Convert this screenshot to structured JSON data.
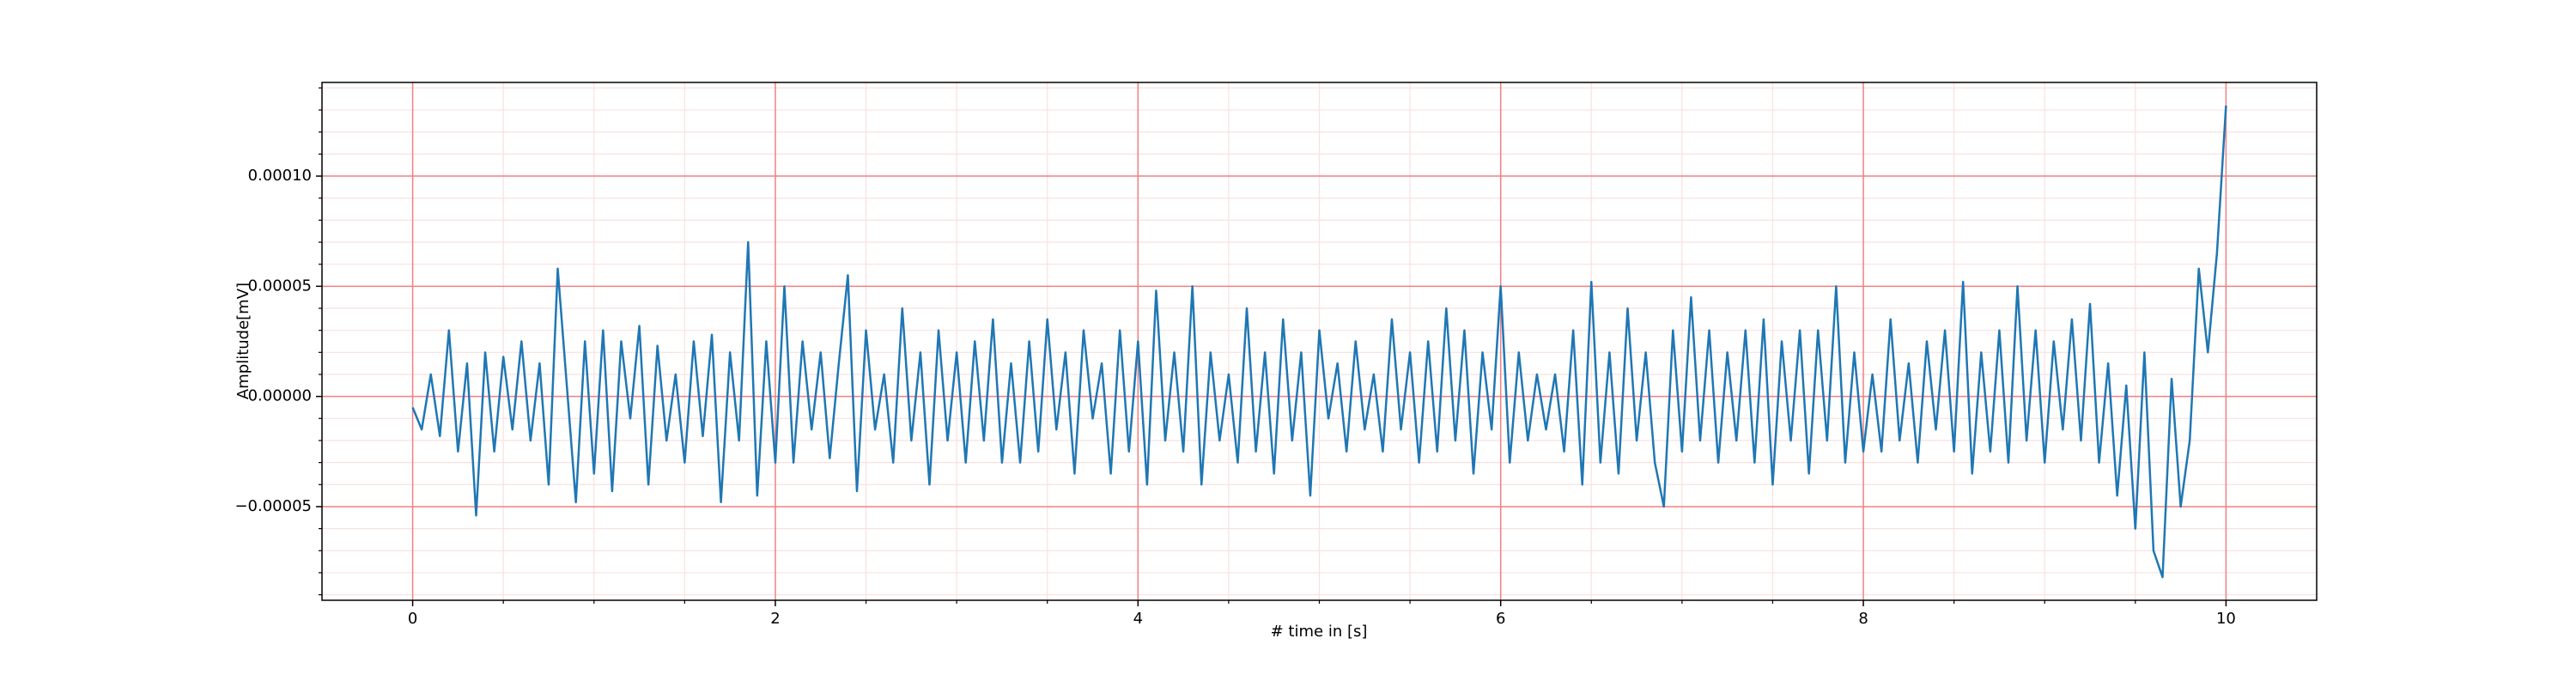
{
  "chart_data": {
    "type": "line",
    "x_label": "# time in [s]",
    "y_label": "Amplitude[mV]",
    "color": "#1f77b4",
    "grid": true,
    "major_grid_color": "#f08080",
    "minor_grid_color": "#fbe0e0",
    "xlim": [
      -0.5,
      10.5
    ],
    "xticks": [
      0,
      2,
      4,
      6,
      8,
      10
    ],
    "x_minor_ticks": [
      0.5,
      1,
      1.5,
      2.5,
      3,
      3.5,
      4.5,
      5,
      5.5,
      6.5,
      7,
      7.5,
      8.5,
      9,
      9.5
    ],
    "ylim": [
      -9.25e-05,
      0.0001425
    ],
    "yticks": [
      {
        "value": -5e-05,
        "label": "−0.00005"
      },
      {
        "value": 0,
        "label": "0.00000"
      },
      {
        "value": 5e-05,
        "label": "0.00005"
      },
      {
        "value": 0.0001,
        "label": "0.00010"
      }
    ],
    "y_minor_ticks": [
      -9e-05,
      -8e-05,
      -7e-05,
      -6e-05,
      -4e-05,
      -3e-05,
      -2e-05,
      -1e-05,
      1e-05,
      2e-05,
      3e-05,
      4e-05,
      6e-05,
      7e-05,
      8e-05,
      9e-05,
      0.00011,
      0.00012,
      0.00013,
      0.00014
    ],
    "x": [
      0,
      0.05,
      0.1,
      0.15,
      0.2,
      0.25,
      0.3,
      0.35,
      0.4,
      0.45,
      0.5,
      0.55,
      0.6,
      0.65,
      0.7,
      0.75,
      0.8,
      0.85,
      0.9,
      0.95,
      1,
      1.05,
      1.1,
      1.15,
      1.2,
      1.25,
      1.3,
      1.35,
      1.4,
      1.45,
      1.5,
      1.55,
      1.6,
      1.65,
      1.7,
      1.75,
      1.8,
      1.85,
      1.9,
      1.95,
      2,
      2.05,
      2.1,
      2.15,
      2.2,
      2.25,
      2.3,
      2.35,
      2.4,
      2.45,
      2.5,
      2.55,
      2.6,
      2.65,
      2.7,
      2.75,
      2.8,
      2.85,
      2.9,
      2.95,
      3,
      3.05,
      3.1,
      3.15,
      3.2,
      3.25,
      3.3,
      3.35,
      3.4,
      3.45,
      3.5,
      3.55,
      3.6,
      3.65,
      3.7,
      3.75,
      3.8,
      3.85,
      3.9,
      3.95,
      4,
      4.05,
      4.1,
      4.15,
      4.2,
      4.25,
      4.3,
      4.35,
      4.4,
      4.45,
      4.5,
      4.55,
      4.6,
      4.65,
      4.7,
      4.75,
      4.8,
      4.85,
      4.9,
      4.95,
      5,
      5.05,
      5.1,
      5.15,
      5.2,
      5.25,
      5.3,
      5.35,
      5.4,
      5.45,
      5.5,
      5.55,
      5.6,
      5.65,
      5.7,
      5.75,
      5.8,
      5.85,
      5.9,
      5.95,
      6,
      6.05,
      6.1,
      6.15,
      6.2,
      6.25,
      6.3,
      6.35,
      6.4,
      6.45,
      6.5,
      6.55,
      6.6,
      6.65,
      6.7,
      6.75,
      6.8,
      6.85,
      6.9,
      6.95,
      7,
      7.05,
      7.1,
      7.15,
      7.2,
      7.25,
      7.3,
      7.35,
      7.4,
      7.45,
      7.5,
      7.55,
      7.6,
      7.65,
      7.7,
      7.75,
      7.8,
      7.85,
      7.9,
      7.95,
      8,
      8.05,
      8.1,
      8.15,
      8.2,
      8.25,
      8.3,
      8.35,
      8.4,
      8.45,
      8.5,
      8.55,
      8.6,
      8.65,
      8.7,
      8.75,
      8.8,
      8.85,
      8.9,
      8.95,
      9,
      9.05,
      9.1,
      9.15,
      9.2,
      9.25,
      9.3,
      9.35,
      9.4,
      9.45,
      9.5,
      9.55,
      9.6,
      9.65,
      9.7,
      9.75,
      9.8,
      9.85,
      9.9,
      9.95,
      10
    ],
    "values": [
      -5e-06,
      -1.5e-05,
      1e-05,
      -1.8e-05,
      3e-05,
      -2.5e-05,
      1.5e-05,
      -5.4e-05,
      2e-05,
      -2.5e-05,
      1.8e-05,
      -1.5e-05,
      2.5e-05,
      -2e-05,
      1.5e-05,
      -4e-05,
      5.8e-05,
      5e-06,
      -4.8e-05,
      2.5e-05,
      -3.5e-05,
      3e-05,
      -4.3e-05,
      2.5e-05,
      -1e-05,
      3.2e-05,
      -4e-05,
      2.3e-05,
      -2e-05,
      1e-05,
      -3e-05,
      2.5e-05,
      -1.8e-05,
      2.8e-05,
      -4.8e-05,
      2e-05,
      -2e-05,
      7e-05,
      -4.5e-05,
      2.5e-05,
      -3e-05,
      5e-05,
      -3e-05,
      2.5e-05,
      -1.5e-05,
      2e-05,
      -2.8e-05,
      1.5e-05,
      5.5e-05,
      -4.3e-05,
      3e-05,
      -1.5e-05,
      1e-05,
      -3e-05,
      4e-05,
      -2e-05,
      2e-05,
      -4e-05,
      3e-05,
      -2e-05,
      2e-05,
      -3e-05,
      2.5e-05,
      -2e-05,
      3.5e-05,
      -3e-05,
      1.5e-05,
      -3e-05,
      2.5e-05,
      -2.5e-05,
      3.5e-05,
      -1.5e-05,
      2e-05,
      -3.5e-05,
      3e-05,
      -1e-05,
      1.5e-05,
      -3.5e-05,
      3e-05,
      -2.5e-05,
      2.5e-05,
      -4e-05,
      4.8e-05,
      -2e-05,
      2e-05,
      -2.5e-05,
      5e-05,
      -4e-05,
      2e-05,
      -2e-05,
      1e-05,
      -3e-05,
      4e-05,
      -2.5e-05,
      2e-05,
      -3.5e-05,
      3.5e-05,
      -2e-05,
      2e-05,
      -4.5e-05,
      3e-05,
      -1e-05,
      1.5e-05,
      -2.5e-05,
      2.5e-05,
      -1.5e-05,
      1e-05,
      -2.5e-05,
      3.5e-05,
      -1.5e-05,
      2e-05,
      -3e-05,
      2.5e-05,
      -2.5e-05,
      4e-05,
      -2e-05,
      3e-05,
      -3.5e-05,
      2e-05,
      -1.5e-05,
      5e-05,
      -3e-05,
      2e-05,
      -2e-05,
      1e-05,
      -1.5e-05,
      1e-05,
      -2.5e-05,
      3e-05,
      -4e-05,
      5.2e-05,
      -3e-05,
      2e-05,
      -3.5e-05,
      4e-05,
      -2e-05,
      2e-05,
      -3e-05,
      -5e-05,
      3e-05,
      -2.5e-05,
      4.5e-05,
      -2e-05,
      3e-05,
      -3e-05,
      2e-05,
      -2e-05,
      3e-05,
      -3e-05,
      3.5e-05,
      -4e-05,
      2.5e-05,
      -2e-05,
      3e-05,
      -3.5e-05,
      3e-05,
      -2e-05,
      5e-05,
      -3e-05,
      2e-05,
      -2.5e-05,
      1e-05,
      -2.5e-05,
      3.5e-05,
      -2e-05,
      1.5e-05,
      -3e-05,
      2.5e-05,
      -1.5e-05,
      3e-05,
      -2.5e-05,
      5.2e-05,
      -3.5e-05,
      2e-05,
      -2.5e-05,
      3e-05,
      -3e-05,
      5e-05,
      -2e-05,
      3e-05,
      -3e-05,
      2.5e-05,
      -1.5e-05,
      3.5e-05,
      -2e-05,
      4.2e-05,
      -3e-05,
      1.5e-05,
      -4.5e-05,
      5e-06,
      -6e-05,
      2e-05,
      -7e-05,
      -8.2e-05,
      8e-06,
      -5e-05,
      -2e-05,
      5.8e-05,
      2e-05,
      6.5e-05,
      0.000132
    ]
  }
}
